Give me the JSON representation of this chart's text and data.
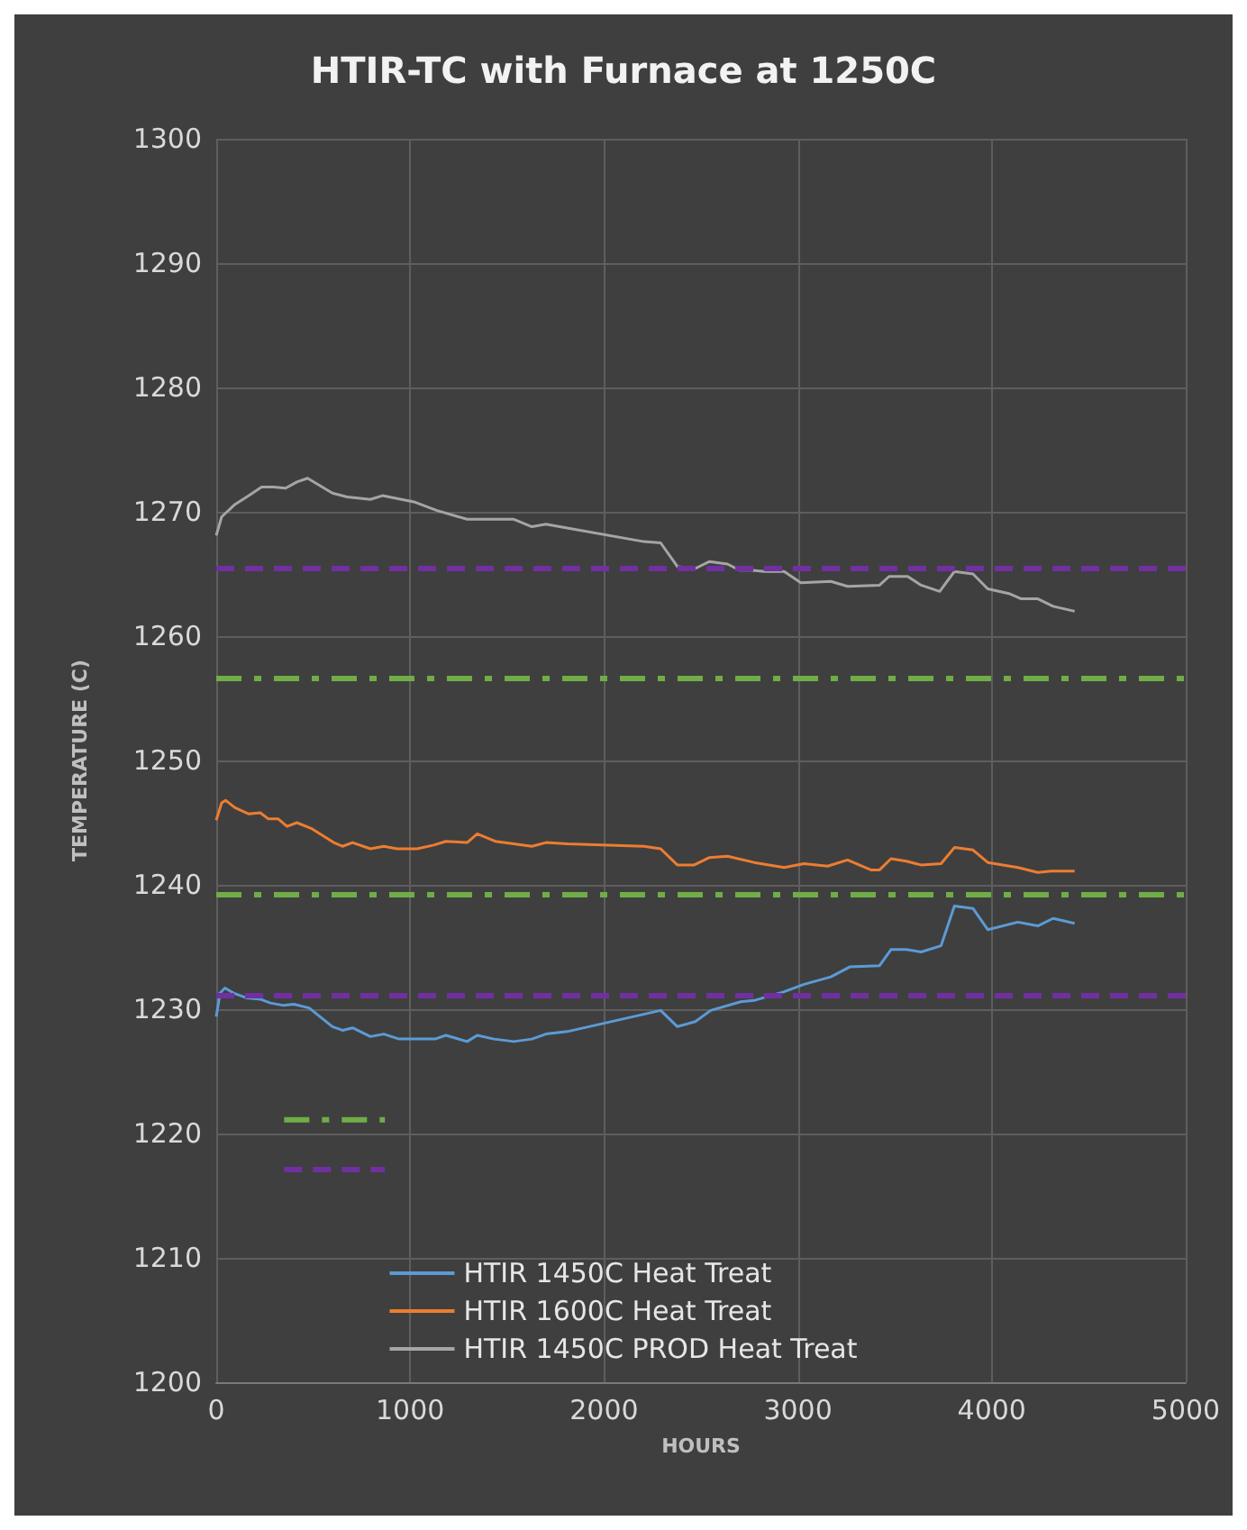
{
  "chart_data": {
    "type": "line",
    "title": "HTIR-TC with Furnace at 1250C",
    "xlabel": "HOURS",
    "ylabel": "TEMPERATURE (C)",
    "xlim": [
      0,
      5000
    ],
    "xticks": [
      0,
      1000,
      2000,
      3000,
      4000,
      5000
    ],
    "ylim": [
      1200,
      1300
    ],
    "yticks": [
      1200,
      1210,
      1220,
      1230,
      1240,
      1250,
      1260,
      1270,
      1280,
      1290,
      1300
    ],
    "grid": true,
    "legend": "bottom",
    "marker": "none",
    "line_style": "solid",
    "series": [
      {
        "name": "HTIR 1450C Heat Treat",
        "color": "#5b9bd5",
        "x": [
          0,
          20,
          45,
          89,
          158,
          227,
          279,
          348,
          400,
          479,
          599,
          651,
          703,
          795,
          864,
          943,
          1036,
          1129,
          1184,
          1294,
          1346,
          1432,
          1535,
          1628,
          1700,
          1810,
          2292,
          2378,
          2471,
          2550,
          2705,
          2774,
          2929,
          3032,
          3170,
          3267,
          3421,
          3480,
          3559,
          3635,
          3738,
          3807,
          3903,
          3979,
          4134,
          4237,
          4316,
          4427
        ],
        "values": [
          1229.4,
          1231.3,
          1231.7,
          1231.3,
          1230.9,
          1230.8,
          1230.5,
          1230.3,
          1230.4,
          1230.1,
          1228.6,
          1228.3,
          1228.5,
          1227.8,
          1228.0,
          1227.6,
          1227.6,
          1227.6,
          1227.9,
          1227.4,
          1227.9,
          1227.6,
          1227.4,
          1227.6,
          1228.0,
          1228.2,
          1229.9,
          1228.6,
          1229.0,
          1229.9,
          1230.6,
          1230.7,
          1231.4,
          1232.0,
          1232.6,
          1233.4,
          1233.5,
          1234.8,
          1234.8,
          1234.6,
          1235.1,
          1238.3,
          1238.1,
          1236.4,
          1237.0,
          1236.7,
          1237.3,
          1236.9
        ]
      },
      {
        "name": "HTIR 1600C Heat Treat",
        "color": "#ed7d31",
        "x": [
          0,
          28,
          48,
          97,
          168,
          227,
          269,
          320,
          365,
          416,
          495,
          606,
          651,
          703,
          795,
          864,
          933,
          1036,
          1122,
          1184,
          1294,
          1346,
          1439,
          1535,
          1628,
          1700,
          1810,
          2206,
          2292,
          2378,
          2465,
          2544,
          2637,
          2774,
          2929,
          3032,
          3153,
          3256,
          3376,
          3421,
          3480,
          3559,
          3635,
          3738,
          3807,
          3903,
          3979,
          4134,
          4237,
          4306,
          4427
        ],
        "values": [
          1245.2,
          1246.6,
          1246.8,
          1246.2,
          1245.7,
          1245.8,
          1245.3,
          1245.3,
          1244.7,
          1245.0,
          1244.5,
          1243.4,
          1243.1,
          1243.4,
          1242.9,
          1243.1,
          1242.9,
          1242.9,
          1243.2,
          1243.5,
          1243.4,
          1244.1,
          1243.5,
          1243.3,
          1243.1,
          1243.4,
          1243.3,
          1243.1,
          1242.9,
          1241.6,
          1241.6,
          1242.2,
          1242.3,
          1241.8,
          1241.4,
          1241.7,
          1241.5,
          1242.0,
          1241.2,
          1241.2,
          1242.1,
          1241.9,
          1241.6,
          1241.7,
          1243.0,
          1242.8,
          1241.8,
          1241.4,
          1241.0,
          1241.1,
          1241.1
        ]
      },
      {
        "name": "HTIR 1450C PROD Heat Treat",
        "color": "#a5a5a5",
        "x": [
          0,
          28,
          97,
          168,
          234,
          296,
          358,
          416,
          471,
          599,
          675,
          795,
          857,
          1019,
          1139,
          1294,
          1535,
          1628,
          1700,
          1810,
          2206,
          2292,
          2378,
          2465,
          2544,
          2637,
          2699,
          2757,
          2826,
          2929,
          3015,
          3170,
          3256,
          3421,
          3470,
          3566,
          3635,
          3731,
          3807,
          3903,
          3979,
          4093,
          4152,
          4237,
          4316,
          4427
        ],
        "values": [
          1268.1,
          1269.6,
          1270.6,
          1271.3,
          1272.0,
          1272.0,
          1271.9,
          1272.4,
          1272.7,
          1271.5,
          1271.2,
          1271.0,
          1271.3,
          1270.8,
          1270.1,
          1269.4,
          1269.4,
          1268.8,
          1269.0,
          1268.7,
          1267.6,
          1267.5,
          1265.6,
          1265.4,
          1266.0,
          1265.8,
          1265.3,
          1265.3,
          1265.2,
          1265.2,
          1264.3,
          1264.4,
          1264.0,
          1264.1,
          1264.8,
          1264.8,
          1264.1,
          1263.6,
          1265.2,
          1265.0,
          1263.8,
          1263.4,
          1263.0,
          1263.0,
          1262.4,
          1262.0
        ]
      },
      {
        "color": "#70ad47",
        "line_style": "dashdot",
        "x": [
          350,
          870
        ],
        "values": [
          1221.1,
          1221.1
        ]
      },
      {
        "color": "#7030a0",
        "line_style": "dashed",
        "x": [
          350,
          870
        ],
        "values": [
          1217.1,
          1217.1
        ]
      }
    ],
    "ref_lines": [
      {
        "axis": "y",
        "value": 1265.4,
        "color": "#7030a0",
        "line_style": "dashed"
      },
      {
        "axis": "y",
        "value": 1256.6,
        "color": "#70ad47",
        "line_style": "dashdot"
      },
      {
        "axis": "y",
        "value": 1239.3,
        "color": "#70ad47",
        "line_style": "dashdot"
      },
      {
        "axis": "y",
        "value": 1231.1,
        "color": "#7030a0",
        "line_style": "dashed"
      }
    ]
  }
}
